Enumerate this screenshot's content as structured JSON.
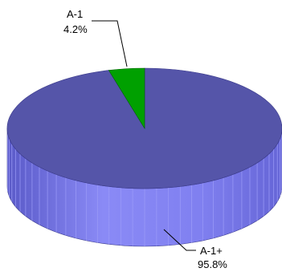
{
  "chart_data": {
    "type": "pie",
    "title": "",
    "style": "3d",
    "slices": [
      {
        "label": "A-1+",
        "value": 95.8,
        "value_text": "95.8%",
        "color": "#5555a9",
        "side_color": "#8080f0"
      },
      {
        "label": "A-1",
        "value": 4.2,
        "value_text": "4.2%",
        "color": "#00a000",
        "side_color": "#008000"
      }
    ]
  }
}
